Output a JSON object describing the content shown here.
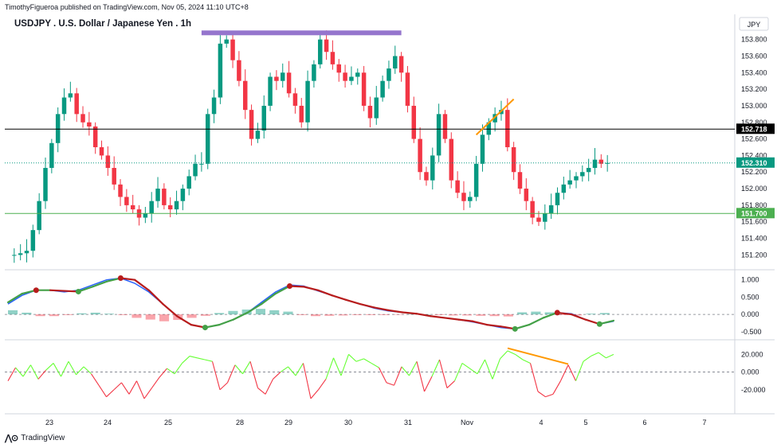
{
  "header": {
    "published_by": "TimothyFigueroa published on TradingView.com, Nov 05, 2024 11:10 UTC+8"
  },
  "symbol_title": "USDJPY . U.S. Dollar / Japanese Yen . 1h",
  "currency": "JPY",
  "footer": {
    "brand": "TradingView",
    "icon": "tradingview-logo-icon"
  },
  "colors": {
    "up": "#089981",
    "down": "#f23645",
    "macd_line": "#2962ff",
    "signal_up": "#43a047",
    "signal_down": "#b71c1c",
    "marker": "#9575cd",
    "trend": "#ff9800",
    "hline_black": "#000000",
    "hline_green": "#4caf50",
    "last_price": "#089981",
    "rsi_up": "#66ff33",
    "rsi_down": "#f23645"
  },
  "chart_data": [
    {
      "type": "candlestick",
      "title": "USDJPY . U.S. Dollar / Japanese Yen . 1h",
      "x_ticks": [
        "23",
        "24",
        "25",
        "28",
        "29",
        "30",
        "31",
        "Nov",
        "4",
        "5",
        "6",
        "7"
      ],
      "y_ticks": [
        "151.200",
        "151.400",
        "151.600",
        "151.800",
        "152.000",
        "152.200",
        "152.400",
        "152.600",
        "152.800",
        "153.000",
        "153.200",
        "153.400",
        "153.600",
        "153.800"
      ],
      "ylim": [
        151.05,
        153.95
      ],
      "close_path": [
        151.2,
        151.2,
        151.22,
        151.25,
        151.5,
        151.85,
        152.25,
        152.55,
        152.9,
        153.1,
        153.15,
        152.9,
        152.8,
        152.75,
        152.5,
        152.4,
        152.25,
        152.05,
        151.9,
        151.8,
        151.75,
        151.65,
        151.7,
        151.85,
        152.0,
        151.8,
        151.75,
        151.85,
        152.0,
        152.15,
        152.3,
        152.3,
        152.9,
        153.1,
        153.75,
        153.8,
        153.55,
        153.3,
        152.95,
        152.6,
        152.7,
        153.0,
        153.35,
        153.3,
        153.4,
        153.15,
        153.0,
        152.8,
        153.3,
        153.5,
        153.8,
        153.65,
        153.5,
        153.4,
        153.3,
        153.35,
        153.4,
        153.0,
        152.85,
        153.1,
        153.3,
        153.45,
        153.6,
        153.4,
        153.0,
        152.6,
        152.2,
        152.1,
        152.4,
        152.9,
        152.6,
        152.1,
        151.95,
        151.85,
        151.9,
        152.3,
        152.65,
        152.8,
        152.9,
        152.95,
        152.5,
        152.2,
        152.0,
        151.85,
        151.65,
        151.6,
        151.7,
        151.8,
        151.95,
        152.05,
        152.1,
        152.15,
        152.2,
        152.25,
        152.35,
        152.3,
        152.31
      ],
      "annotations": [
        {
          "type": "horizontal_line",
          "price": 152.718,
          "label": "152.718",
          "color": "#000000"
        },
        {
          "type": "horizontal_line",
          "price": 151.7,
          "label": "151.700",
          "color": "#4caf50"
        },
        {
          "type": "last_price",
          "price": 152.31,
          "label": "152.310"
        },
        {
          "type": "resistance_marker",
          "from_index": 31,
          "to_index": 63,
          "price": 153.88
        },
        {
          "type": "trendline",
          "from_index": 75,
          "to_index": 81,
          "from_price": 152.65,
          "to_price": 153.08
        }
      ]
    },
    {
      "type": "line",
      "series": [
        {
          "values": [
            0.3,
            0.55,
            0.7,
            0.7,
            0.65,
            0.7,
            0.85,
            1.0,
            1.05,
            0.9,
            0.65,
            0.3,
            -0.05,
            -0.3,
            -0.38,
            -0.3,
            -0.15,
            0.05,
            0.35,
            0.65,
            0.85,
            0.82,
            0.68,
            0.55,
            0.42,
            0.3,
            0.18,
            0.1,
            0.06,
            0.02,
            -0.05,
            -0.1,
            -0.15,
            -0.22,
            -0.3,
            -0.38,
            -0.42,
            -0.3,
            -0.1,
            0.05,
            0.02,
            -0.15,
            -0.28,
            -0.2
          ]
        },
        {
          "values": [
            0.35,
            0.6,
            0.7,
            0.7,
            0.68,
            0.66,
            0.8,
            0.95,
            1.05,
            1.0,
            0.7,
            0.3,
            -0.05,
            -0.3,
            -0.38,
            -0.3,
            -0.15,
            0.05,
            0.3,
            0.6,
            0.82,
            0.8,
            0.7,
            0.55,
            0.42,
            0.3,
            0.2,
            0.12,
            0.06,
            0.02,
            -0.05,
            -0.1,
            -0.15,
            -0.2,
            -0.3,
            -0.35,
            -0.42,
            -0.3,
            -0.1,
            0.05,
            0.0,
            -0.15,
            -0.28,
            -0.18
          ]
        }
      ],
      "histogram": [
        0.12,
        0.05,
        -0.05,
        -0.05,
        -0.02,
        0.03,
        0.05,
        0.02,
        -0.02,
        -0.1,
        -0.15,
        -0.2,
        -0.16,
        -0.1,
        -0.04,
        0.04,
        0.1,
        0.14,
        0.16,
        0.12,
        0.08,
        -0.02,
        -0.05,
        -0.04,
        -0.03,
        -0.02,
        -0.02,
        -0.02,
        -0.01,
        0.01,
        0.0,
        -0.02,
        -0.03,
        -0.03,
        -0.04,
        -0.05,
        -0.06,
        0.06,
        0.08,
        0.06,
        -0.02,
        -0.03,
        0.02,
        0.04
      ],
      "y_ticks": [
        "-0.500",
        "0.000",
        "0.500",
        "1.000"
      ],
      "ylim": [
        -0.62,
        1.2
      ]
    },
    {
      "type": "line",
      "values": [
        -10,
        5,
        -5,
        8,
        -8,
        2,
        10,
        -5,
        12,
        -3,
        6,
        -2,
        -15,
        -28,
        -20,
        -12,
        -25,
        -10,
        -30,
        -18,
        -6,
        4,
        -2,
        10,
        18,
        16,
        14,
        12,
        -20,
        -12,
        8,
        -2,
        12,
        -18,
        -25,
        -8,
        0,
        6,
        -4,
        10,
        -30,
        -20,
        -8,
        16,
        -4,
        20,
        12,
        15,
        10,
        5,
        -12,
        -15,
        6,
        -4,
        12,
        -22,
        -5,
        14,
        -18,
        -10,
        10,
        4,
        -2,
        14,
        -8,
        15,
        24,
        20,
        14,
        10,
        -22,
        -28,
        -25,
        -10,
        8,
        -10,
        12,
        18,
        22,
        16,
        20
      ],
      "y_ticks": [
        "-20.000",
        "0.000",
        "20.000"
      ],
      "ylim": [
        -40,
        32
      ],
      "annotations": [
        {
          "type": "trendline",
          "from_value": 27,
          "to_value": 9
        }
      ]
    }
  ]
}
